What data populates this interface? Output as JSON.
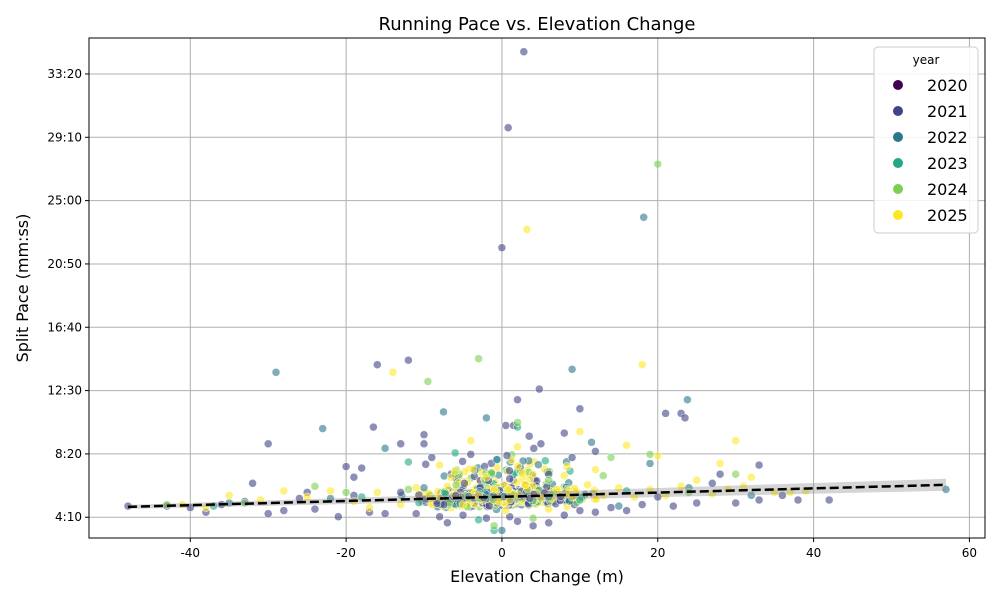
{
  "chart_data": {
    "type": "scatter",
    "title": "Running Pace vs. Elevation Change",
    "xlabel": "Elevation Change (m)",
    "ylabel": "Split Pace (mm:ss)",
    "xlim": [
      -53,
      62
    ],
    "ylim": [
      2.8,
      35.7
    ],
    "xticks": [
      -40,
      -20,
      0,
      20,
      40,
      60
    ],
    "yticks": [
      {
        "value": 4.1667,
        "label": "4:10"
      },
      {
        "value": 8.3333,
        "label": "8:20"
      },
      {
        "value": 12.5,
        "label": "12:30"
      },
      {
        "value": 16.6667,
        "label": "16:40"
      },
      {
        "value": 20.8333,
        "label": "20:50"
      },
      {
        "value": 25.0,
        "label": "25:00"
      },
      {
        "value": 29.1667,
        "label": "29:10"
      },
      {
        "value": 33.3333,
        "label": "33:20"
      }
    ],
    "grid": true,
    "legend": {
      "title": "year",
      "placement": "top-right",
      "entries": [
        {
          "label": "2020",
          "color": "#440154"
        },
        {
          "label": "2021",
          "color": "#414487"
        },
        {
          "label": "2022",
          "color": "#2a788e"
        },
        {
          "label": "2023",
          "color": "#22a884"
        },
        {
          "label": "2024",
          "color": "#7ad151"
        },
        {
          "label": "2025",
          "color": "#fde725"
        }
      ]
    },
    "trend_line": {
      "x": [
        -48,
        57
      ],
      "y": [
        4.85,
        6.3
      ],
      "color": "#000000",
      "style": "dashed"
    },
    "series": [
      {
        "name": "2021",
        "color": "#414487",
        "points": [
          [
            2.8,
            34.8
          ],
          [
            0.8,
            29.8
          ],
          [
            0.0,
            21.9
          ],
          [
            -16.0,
            14.2
          ],
          [
            -12.0,
            14.5
          ],
          [
            2.0,
            11.9
          ],
          [
            4.8,
            12.6
          ],
          [
            10.0,
            11.3
          ],
          [
            21.0,
            11.0
          ],
          [
            23.0,
            11.0
          ],
          [
            23.5,
            10.7
          ],
          [
            -16.5,
            10.1
          ],
          [
            -30.0,
            9.0
          ],
          [
            -13.0,
            9.0
          ],
          [
            -10.0,
            9.6
          ],
          [
            -10.0,
            9.0
          ],
          [
            0.5,
            10.2
          ],
          [
            1.5,
            10.2
          ],
          [
            3.5,
            9.5
          ],
          [
            5.0,
            9.0
          ],
          [
            8.0,
            9.7
          ],
          [
            -20.0,
            7.5
          ],
          [
            -18.0,
            7.4
          ],
          [
            -32.0,
            6.4
          ],
          [
            -19.0,
            6.8
          ],
          [
            -48.0,
            4.9
          ],
          [
            -43.0,
            4.9
          ],
          [
            -40.0,
            4.8
          ],
          [
            -38.0,
            4.5
          ],
          [
            -36.0,
            5.0
          ],
          [
            -33.0,
            5.2
          ],
          [
            -30.0,
            4.4
          ],
          [
            -28.0,
            4.6
          ],
          [
            -26.0,
            5.4
          ],
          [
            -24.0,
            4.7
          ],
          [
            -21.0,
            4.2
          ],
          [
            -19.0,
            5.6
          ],
          [
            -17.0,
            4.5
          ],
          [
            -15.0,
            4.4
          ],
          [
            -13.0,
            5.8
          ],
          [
            -11.0,
            4.4
          ],
          [
            -8.0,
            4.2
          ],
          [
            -7.0,
            3.8
          ],
          [
            -5.0,
            4.3
          ],
          [
            -3.0,
            5.7
          ],
          [
            -2.0,
            4.1
          ],
          [
            1.0,
            4.2
          ],
          [
            2.0,
            3.9
          ],
          [
            4.0,
            3.6
          ],
          [
            6.0,
            3.8
          ],
          [
            8.0,
            4.3
          ],
          [
            10.0,
            4.6
          ],
          [
            12.0,
            4.5
          ],
          [
            14.0,
            4.8
          ],
          [
            16.0,
            4.6
          ],
          [
            18.0,
            5.0
          ],
          [
            20.0,
            5.5
          ],
          [
            22.0,
            4.9
          ],
          [
            25.0,
            5.1
          ],
          [
            27.0,
            6.4
          ],
          [
            30.0,
            5.1
          ],
          [
            33.0,
            5.3
          ],
          [
            33.0,
            7.6
          ],
          [
            36.0,
            5.6
          ],
          [
            38.0,
            5.3
          ],
          [
            42.0,
            5.3
          ],
          [
            -25.0,
            5.8
          ],
          [
            -9.0,
            8.1
          ],
          [
            9.0,
            8.1
          ],
          [
            12.0,
            8.5
          ],
          [
            -4.0,
            8.3
          ],
          [
            6.0,
            7.0
          ],
          [
            28.0,
            7.0
          ]
        ]
      },
      {
        "name": "2022",
        "color": "#2a788e",
        "points": [
          [
            -29.0,
            13.7
          ],
          [
            9.0,
            13.9
          ],
          [
            23.8,
            11.9
          ],
          [
            -7.5,
            11.1
          ],
          [
            -2.0,
            10.7
          ],
          [
            18.2,
            23.9
          ],
          [
            -23.0,
            10.0
          ],
          [
            -15.0,
            8.7
          ],
          [
            11.5,
            9.1
          ],
          [
            19.0,
            7.7
          ],
          [
            -35.0,
            5.1
          ],
          [
            -22.0,
            5.4
          ],
          [
            -10.0,
            6.1
          ],
          [
            0.0,
            3.3
          ],
          [
            6.0,
            5.5
          ],
          [
            15.0,
            4.9
          ],
          [
            24.0,
            6.1
          ],
          [
            32.0,
            5.6
          ],
          [
            57.0,
            6.0
          ]
        ]
      },
      {
        "name": "2023",
        "color": "#22a884",
        "points": [
          [
            -12.0,
            7.8
          ],
          [
            -6.0,
            8.4
          ],
          [
            2.0,
            10.1
          ],
          [
            -3.0,
            4.0
          ],
          [
            -1.0,
            3.3
          ],
          [
            10.0,
            5.3
          ],
          [
            -18.0,
            5.5
          ],
          [
            16.0,
            5.9
          ],
          [
            -37.0,
            4.9
          ]
        ]
      },
      {
        "name": "2024",
        "color": "#7ad151",
        "points": [
          [
            20.0,
            27.4
          ],
          [
            -3.0,
            14.6
          ],
          [
            -9.5,
            13.1
          ],
          [
            2.0,
            10.4
          ],
          [
            -1.0,
            3.6
          ],
          [
            -43.0,
            5.0
          ],
          [
            -24.0,
            6.2
          ],
          [
            -12.0,
            6.0
          ],
          [
            6.0,
            6.6
          ],
          [
            14.0,
            8.1
          ],
          [
            19.0,
            8.3
          ],
          [
            30.0,
            7.0
          ],
          [
            4.0,
            4.1
          ],
          [
            -33.0,
            5.1
          ],
          [
            -20.0,
            5.8
          ],
          [
            13.0,
            6.9
          ],
          [
            24.0,
            5.8
          ],
          [
            -6.0,
            7.0
          ]
        ]
      },
      {
        "name": "2025",
        "color": "#fde725",
        "points": [
          [
            3.2,
            23.1
          ],
          [
            18.0,
            14.2
          ],
          [
            -14.0,
            13.7
          ],
          [
            30.0,
            9.2
          ],
          [
            10.0,
            9.8
          ],
          [
            16.0,
            8.9
          ],
          [
            28.0,
            7.7
          ],
          [
            -4.0,
            9.2
          ],
          [
            2.0,
            8.8
          ],
          [
            -41.0,
            5.0
          ],
          [
            -38.0,
            4.8
          ],
          [
            -35.0,
            5.6
          ],
          [
            -31.0,
            5.3
          ],
          [
            -28.0,
            5.9
          ],
          [
            -25.0,
            5.5
          ],
          [
            -22.0,
            5.9
          ],
          [
            -19.0,
            5.2
          ],
          [
            -16.0,
            5.8
          ],
          [
            -13.0,
            5.0
          ],
          [
            -11.0,
            6.1
          ],
          [
            -9.0,
            5.4
          ],
          [
            -7.0,
            6.2
          ],
          [
            -5.0,
            5.0
          ],
          [
            -3.0,
            5.6
          ],
          [
            -1.0,
            6.0
          ],
          [
            1.0,
            5.3
          ],
          [
            3.0,
            6.3
          ],
          [
            5.0,
            5.4
          ],
          [
            7.0,
            6.0
          ],
          [
            9.0,
            5.5
          ],
          [
            11.0,
            6.3
          ],
          [
            13.0,
            5.6
          ],
          [
            15.0,
            6.1
          ],
          [
            17.0,
            5.5
          ],
          [
            19.0,
            6.0
          ],
          [
            21.0,
            5.6
          ],
          [
            23.0,
            6.2
          ],
          [
            25.0,
            6.6
          ],
          [
            27.0,
            5.7
          ],
          [
            29.0,
            6.0
          ],
          [
            31.0,
            6.2
          ],
          [
            32.0,
            6.8
          ],
          [
            35.0,
            5.8
          ],
          [
            37.0,
            5.8
          ],
          [
            39.0,
            5.9
          ],
          [
            -6.0,
            7.2
          ],
          [
            -2.0,
            6.8
          ],
          [
            4.0,
            7.0
          ],
          [
            8.0,
            6.9
          ],
          [
            12.0,
            7.3
          ],
          [
            -17.0,
            4.8
          ],
          [
            0.5,
            4.6
          ],
          [
            6.0,
            4.7
          ],
          [
            20.0,
            8.2
          ],
          [
            -8.0,
            7.6
          ]
        ]
      }
    ]
  }
}
